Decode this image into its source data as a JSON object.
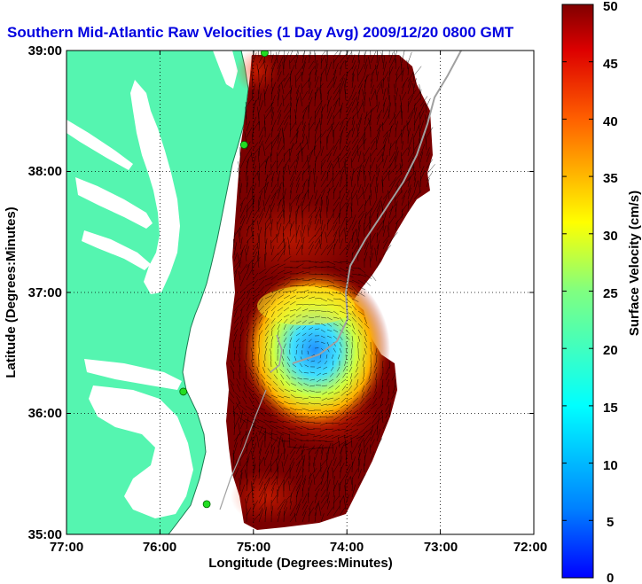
{
  "title": "Southern Mid-Atlantic Raw Velocities (1 Day Avg) 2009/12/20 0800 GMT",
  "xlabel": "Longitude (Degrees:Minutes)",
  "ylabel": "Latitude (Degrees:Minutes)",
  "colorbar_label": "Surface Velocity (cm/s)",
  "x_ticks": [
    "77:00",
    "76:00",
    "75:00",
    "74:00",
    "73:00",
    "72:00"
  ],
  "y_ticks": [
    "39:00",
    "38:00",
    "37:00",
    "36:00",
    "35:00"
  ],
  "colorbar_ticks": [
    "50",
    "45",
    "40",
    "35",
    "30",
    "25",
    "20",
    "15",
    "10",
    "5",
    "0"
  ],
  "colors": {
    "land": "#55f5b0",
    "coast_line": "#1a7a50",
    "title": "#0000e0",
    "field_max": "#8b0000",
    "field_min": "#1e90ff",
    "station": "#22dd22"
  },
  "chart_data": {
    "type": "heatmap",
    "title": "Southern Mid-Atlantic Raw Velocities (1 Day Avg) 2009/12/20 0800 GMT",
    "xlabel": "Longitude (Degrees:Minutes)",
    "ylabel": "Latitude (Degrees:Minutes)",
    "xlim": [
      -77,
      -72
    ],
    "ylim": [
      35,
      39
    ],
    "clim": [
      0,
      50
    ],
    "grid": true,
    "colormap": "jet",
    "colorbar_label": "Surface Velocity (cm/s)",
    "low_velocity_center": {
      "lon": -74.35,
      "lat": 36.5,
      "speed": 8
    },
    "stations": [
      {
        "lon": -74.88,
        "lat": 38.98
      },
      {
        "lon": -75.1,
        "lat": 38.22
      },
      {
        "lon": -75.75,
        "lat": 36.18
      },
      {
        "lon": -75.5,
        "lat": 35.25
      }
    ]
  }
}
